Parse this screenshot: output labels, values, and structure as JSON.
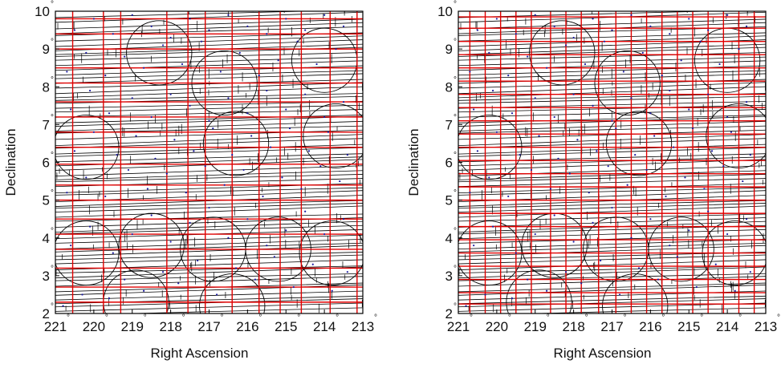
{
  "figure": {
    "degree_symbol": "°"
  },
  "chart_data": [
    {
      "type": "scatter",
      "title": "",
      "xlabel": "Right Ascension",
      "ylabel": "Declination",
      "xlim": [
        221,
        213
      ],
      "ylim": [
        2,
        10
      ],
      "x_reversed": true,
      "xticks": [
        "221",
        "220",
        "219",
        "218",
        "217",
        "216",
        "215",
        "214",
        "213"
      ],
      "yticks": [
        "2",
        "3",
        "4",
        "5",
        "6",
        "7",
        "8",
        "9",
        "10"
      ],
      "grid": false,
      "colors": {
        "axes": "#000000",
        "outlines": "#000000",
        "partition_lines": "#e00000",
        "points": "#1a1aa0"
      },
      "red_x_lines": [
        220.55,
        219.75,
        219.3,
        218.1,
        217.55,
        217.1,
        216.4,
        215.7,
        215.15,
        214.6,
        213.85,
        213.15
      ],
      "red_y_lines": [
        2.3,
        2.7,
        3.2,
        3.7,
        4.1,
        4.5,
        5.0,
        5.4,
        5.95,
        6.4,
        6.8,
        7.2,
        7.6,
        8.1,
        8.5,
        9.0,
        9.4,
        9.8
      ],
      "circles": [
        {
          "ra": 220.2,
          "dec": 6.4,
          "r": 0.85
        },
        {
          "ra": 218.3,
          "dec": 8.9,
          "r": 0.85
        },
        {
          "ra": 216.6,
          "dec": 8.1,
          "r": 0.85
        },
        {
          "ra": 214.0,
          "dec": 8.7,
          "r": 0.85
        },
        {
          "ra": 216.3,
          "dec": 6.5,
          "r": 0.85
        },
        {
          "ra": 213.7,
          "dec": 6.7,
          "r": 0.85
        },
        {
          "ra": 220.2,
          "dec": 3.6,
          "r": 0.85
        },
        {
          "ra": 218.5,
          "dec": 3.8,
          "r": 0.85
        },
        {
          "ra": 216.9,
          "dec": 3.7,
          "r": 0.85
        },
        {
          "ra": 215.2,
          "dec": 3.7,
          "r": 0.85
        },
        {
          "ra": 213.8,
          "dec": 3.6,
          "r": 0.85
        },
        {
          "ra": 218.9,
          "dec": 2.3,
          "r": 0.85
        },
        {
          "ra": 216.4,
          "dec": 2.2,
          "r": 0.85
        }
      ],
      "points": [
        [
          220.8,
          2.2
        ],
        [
          220.3,
          2.5
        ],
        [
          219.6,
          2.4
        ],
        [
          219.2,
          2.9
        ],
        [
          218.7,
          2.6
        ],
        [
          218.2,
          3.1
        ],
        [
          217.8,
          2.8
        ],
        [
          217.3,
          3.4
        ],
        [
          216.8,
          2.5
        ],
        [
          216.3,
          3.2
        ],
        [
          215.8,
          2.9
        ],
        [
          215.3,
          3.5
        ],
        [
          214.8,
          2.7
        ],
        [
          214.3,
          3.3
        ],
        [
          213.8,
          2.6
        ],
        [
          213.4,
          3.1
        ],
        [
          220.6,
          3.8
        ],
        [
          220.1,
          4.3
        ],
        [
          219.5,
          3.6
        ],
        [
          219.0,
          4.1
        ],
        [
          218.5,
          4.6
        ],
        [
          218.0,
          3.9
        ],
        [
          217.5,
          4.4
        ],
        [
          217.0,
          4.8
        ],
        [
          216.5,
          4.0
        ],
        [
          216.0,
          4.5
        ],
        [
          215.5,
          3.8
        ],
        [
          215.0,
          4.2
        ],
        [
          214.5,
          4.7
        ],
        [
          214.0,
          4.1
        ],
        [
          213.5,
          4.5
        ],
        [
          220.7,
          5.2
        ],
        [
          220.2,
          5.6
        ],
        [
          219.7,
          5.1
        ],
        [
          219.1,
          5.8
        ],
        [
          218.6,
          5.3
        ],
        [
          218.1,
          5.7
        ],
        [
          217.6,
          5.2
        ],
        [
          217.1,
          5.9
        ],
        [
          216.6,
          5.4
        ],
        [
          216.1,
          5.8
        ],
        [
          215.6,
          5.1
        ],
        [
          215.1,
          5.6
        ],
        [
          214.6,
          5.3
        ],
        [
          214.1,
          5.9
        ],
        [
          213.6,
          5.5
        ],
        [
          220.5,
          6.3
        ],
        [
          220.0,
          6.8
        ],
        [
          219.4,
          6.2
        ],
        [
          218.9,
          6.7
        ],
        [
          218.4,
          6.1
        ],
        [
          217.9,
          6.6
        ],
        [
          217.4,
          6.3
        ],
        [
          216.9,
          6.9
        ],
        [
          216.4,
          6.2
        ],
        [
          215.9,
          6.7
        ],
        [
          215.4,
          6.4
        ],
        [
          214.9,
          6.9
        ],
        [
          214.4,
          6.3
        ],
        [
          213.9,
          6.8
        ],
        [
          213.4,
          6.2
        ],
        [
          220.6,
          7.4
        ],
        [
          220.1,
          7.9
        ],
        [
          219.6,
          7.3
        ],
        [
          219.0,
          7.7
        ],
        [
          218.5,
          7.2
        ],
        [
          218.0,
          7.8
        ],
        [
          217.5,
          7.5
        ],
        [
          217.0,
          7.1
        ],
        [
          216.5,
          7.7
        ],
        [
          216.0,
          7.3
        ],
        [
          215.5,
          7.9
        ],
        [
          215.0,
          7.4
        ],
        [
          214.5,
          7.8
        ],
        [
          214.0,
          7.2
        ],
        [
          213.5,
          7.6
        ],
        [
          220.7,
          8.4
        ],
        [
          220.2,
          8.9
        ],
        [
          219.7,
          8.3
        ],
        [
          219.2,
          8.8
        ],
        [
          218.7,
          8.5
        ],
        [
          218.2,
          9.1
        ],
        [
          217.7,
          8.6
        ],
        [
          217.2,
          9.2
        ],
        [
          216.7,
          8.4
        ],
        [
          216.2,
          8.9
        ],
        [
          215.7,
          8.3
        ],
        [
          215.2,
          8.7
        ],
        [
          214.7,
          9.2
        ],
        [
          214.2,
          8.6
        ],
        [
          213.7,
          9.0
        ],
        [
          220.5,
          9.5
        ],
        [
          220.0,
          9.8
        ],
        [
          219.5,
          9.4
        ],
        [
          219.0,
          9.9
        ],
        [
          218.5,
          9.6
        ],
        [
          218.0,
          9.3
        ],
        [
          217.5,
          9.8
        ],
        [
          217.0,
          9.5
        ],
        [
          216.5,
          9.9
        ],
        [
          216.0,
          9.6
        ],
        [
          215.5,
          9.4
        ],
        [
          215.0,
          9.8
        ],
        [
          214.5,
          9.5
        ],
        [
          214.0,
          9.9
        ],
        [
          213.5,
          9.6
        ]
      ]
    },
    {
      "type": "scatter",
      "title": "",
      "xlabel": "Right Ascension",
      "ylabel": "Declination",
      "xlim": [
        221,
        213
      ],
      "ylim": [
        2,
        10
      ],
      "x_reversed": true,
      "xticks": [
        "221",
        "220",
        "219",
        "218",
        "217",
        "216",
        "215",
        "214",
        "213"
      ],
      "yticks": [
        "2",
        "3",
        "4",
        "5",
        "6",
        "7",
        "8",
        "9",
        "10"
      ],
      "grid": false,
      "colors": {
        "axes": "#000000",
        "outlines": "#000000",
        "partition_lines": "#e00000",
        "points": "#1a1aa0"
      },
      "red_x_lines": [
        220.7,
        220.3,
        219.9,
        219.5,
        219.1,
        218.6,
        218.2,
        217.8,
        217.35,
        216.9,
        216.5,
        216.1,
        215.7,
        215.3,
        214.9,
        214.5,
        214.1,
        213.7,
        213.3
      ],
      "red_y_lines": [
        2.25,
        2.55,
        2.9,
        3.25,
        3.6,
        3.95,
        4.3,
        4.65,
        5.0,
        5.35,
        5.7,
        6.05,
        6.4,
        6.75,
        7.1,
        7.45,
        7.8,
        8.15,
        8.5,
        8.85,
        9.2,
        9.55,
        9.85
      ],
      "circles": [
        {
          "ra": 220.2,
          "dec": 6.4,
          "r": 0.85
        },
        {
          "ra": 218.3,
          "dec": 8.9,
          "r": 0.85
        },
        {
          "ra": 216.6,
          "dec": 8.1,
          "r": 0.85
        },
        {
          "ra": 214.0,
          "dec": 8.7,
          "r": 0.85
        },
        {
          "ra": 216.3,
          "dec": 6.5,
          "r": 0.85
        },
        {
          "ra": 213.7,
          "dec": 6.7,
          "r": 0.85
        },
        {
          "ra": 220.2,
          "dec": 3.6,
          "r": 0.85
        },
        {
          "ra": 218.5,
          "dec": 3.8,
          "r": 0.85
        },
        {
          "ra": 216.9,
          "dec": 3.7,
          "r": 0.85
        },
        {
          "ra": 215.2,
          "dec": 3.7,
          "r": 0.85
        },
        {
          "ra": 213.8,
          "dec": 3.6,
          "r": 0.85
        },
        {
          "ra": 218.9,
          "dec": 2.3,
          "r": 0.85
        },
        {
          "ra": 216.4,
          "dec": 2.2,
          "r": 0.85
        }
      ],
      "points": [
        [
          220.8,
          2.2
        ],
        [
          220.3,
          2.5
        ],
        [
          219.6,
          2.4
        ],
        [
          219.2,
          2.9
        ],
        [
          218.7,
          2.6
        ],
        [
          218.2,
          3.1
        ],
        [
          217.8,
          2.8
        ],
        [
          217.3,
          3.4
        ],
        [
          216.8,
          2.5
        ],
        [
          216.3,
          3.2
        ],
        [
          215.8,
          2.9
        ],
        [
          215.3,
          3.5
        ],
        [
          214.8,
          2.7
        ],
        [
          214.3,
          3.3
        ],
        [
          213.8,
          2.6
        ],
        [
          213.4,
          3.1
        ],
        [
          220.6,
          3.8
        ],
        [
          220.1,
          4.3
        ],
        [
          219.5,
          3.6
        ],
        [
          219.0,
          4.1
        ],
        [
          218.5,
          4.6
        ],
        [
          218.0,
          3.9
        ],
        [
          217.5,
          4.4
        ],
        [
          217.0,
          4.8
        ],
        [
          216.5,
          4.0
        ],
        [
          216.0,
          4.5
        ],
        [
          215.5,
          3.8
        ],
        [
          215.0,
          4.2
        ],
        [
          214.5,
          4.7
        ],
        [
          214.0,
          4.1
        ],
        [
          213.5,
          4.5
        ],
        [
          220.7,
          5.2
        ],
        [
          220.2,
          5.6
        ],
        [
          219.7,
          5.1
        ],
        [
          219.1,
          5.8
        ],
        [
          218.6,
          5.3
        ],
        [
          218.1,
          5.7
        ],
        [
          217.6,
          5.2
        ],
        [
          217.1,
          5.9
        ],
        [
          216.6,
          5.4
        ],
        [
          216.1,
          5.8
        ],
        [
          215.6,
          5.1
        ],
        [
          215.1,
          5.6
        ],
        [
          214.6,
          5.3
        ],
        [
          214.1,
          5.9
        ],
        [
          213.6,
          5.5
        ],
        [
          220.5,
          6.3
        ],
        [
          220.0,
          6.8
        ],
        [
          219.4,
          6.2
        ],
        [
          218.9,
          6.7
        ],
        [
          218.4,
          6.1
        ],
        [
          217.9,
          6.6
        ],
        [
          217.4,
          6.3
        ],
        [
          216.9,
          6.9
        ],
        [
          216.4,
          6.2
        ],
        [
          215.9,
          6.7
        ],
        [
          215.4,
          6.4
        ],
        [
          214.9,
          6.9
        ],
        [
          214.4,
          6.3
        ],
        [
          213.9,
          6.8
        ],
        [
          213.4,
          6.2
        ],
        [
          220.6,
          7.4
        ],
        [
          220.1,
          7.9
        ],
        [
          219.6,
          7.3
        ],
        [
          219.0,
          7.7
        ],
        [
          218.5,
          7.2
        ],
        [
          218.0,
          7.8
        ],
        [
          217.5,
          7.5
        ],
        [
          217.0,
          7.1
        ],
        [
          216.5,
          7.7
        ],
        [
          216.0,
          7.3
        ],
        [
          215.5,
          7.9
        ],
        [
          215.0,
          7.4
        ],
        [
          214.5,
          7.8
        ],
        [
          214.0,
          7.2
        ],
        [
          213.5,
          7.6
        ],
        [
          220.7,
          8.4
        ],
        [
          220.2,
          8.9
        ],
        [
          219.7,
          8.3
        ],
        [
          219.2,
          8.8
        ],
        [
          218.7,
          8.5
        ],
        [
          218.2,
          9.1
        ],
        [
          217.7,
          8.6
        ],
        [
          217.2,
          9.2
        ],
        [
          216.7,
          8.4
        ],
        [
          216.2,
          8.9
        ],
        [
          215.7,
          8.3
        ],
        [
          215.2,
          8.7
        ],
        [
          214.7,
          9.2
        ],
        [
          214.2,
          8.6
        ],
        [
          213.7,
          9.0
        ],
        [
          220.5,
          9.5
        ],
        [
          220.0,
          9.8
        ],
        [
          219.5,
          9.4
        ],
        [
          219.0,
          9.9
        ],
        [
          218.5,
          9.6
        ],
        [
          218.0,
          9.3
        ],
        [
          217.5,
          9.8
        ],
        [
          217.0,
          9.5
        ],
        [
          216.5,
          9.9
        ],
        [
          216.0,
          9.6
        ],
        [
          215.5,
          9.4
        ],
        [
          215.0,
          9.8
        ],
        [
          214.5,
          9.5
        ],
        [
          214.0,
          9.9
        ],
        [
          213.5,
          9.6
        ]
      ]
    }
  ]
}
